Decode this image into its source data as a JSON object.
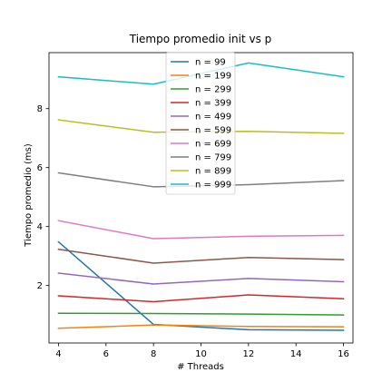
{
  "chart_data": {
    "type": "line",
    "title": "Tiempo promedio init vs p",
    "xlabel": "# Threads",
    "ylabel": "Tiempo promedio (ms)",
    "x": [
      4,
      8,
      12,
      16
    ],
    "xlim": [
      3.6,
      16.4
    ],
    "ylim": [
      0.05,
      9.9
    ],
    "xticks": [
      4,
      6,
      8,
      10,
      12,
      14,
      16
    ],
    "yticks": [
      2,
      4,
      6,
      8
    ],
    "grid": false,
    "legend_position": "top-center",
    "series": [
      {
        "name": "n = 99",
        "color": "#1f77b4",
        "values": [
          3.48,
          0.68,
          0.5,
          0.48
        ]
      },
      {
        "name": "n = 199",
        "color": "#ff7f0e",
        "values": [
          0.55,
          0.66,
          0.61,
          0.6
        ]
      },
      {
        "name": "n = 299",
        "color": "#2ca02c",
        "values": [
          1.06,
          1.05,
          1.03,
          1.0
        ]
      },
      {
        "name": "n = 399",
        "color": "#d62728",
        "values": [
          1.65,
          1.45,
          1.68,
          1.55
        ]
      },
      {
        "name": "n = 499",
        "color": "#9467bd",
        "values": [
          2.42,
          2.05,
          2.24,
          2.13
        ]
      },
      {
        "name": "n = 599",
        "color": "#8c564b",
        "values": [
          3.23,
          2.76,
          2.95,
          2.88
        ]
      },
      {
        "name": "n = 699",
        "color": "#e377c2",
        "values": [
          4.2,
          3.59,
          3.67,
          3.7
        ]
      },
      {
        "name": "n = 799",
        "color": "#7f7f7f",
        "values": [
          5.82,
          5.35,
          5.42,
          5.56
        ]
      },
      {
        "name": "n = 899",
        "color": "#bcbd22",
        "values": [
          7.62,
          7.2,
          7.23,
          7.16
        ]
      },
      {
        "name": "n = 999",
        "color": "#17becf",
        "values": [
          9.08,
          8.83,
          9.55,
          9.08
        ]
      }
    ]
  }
}
